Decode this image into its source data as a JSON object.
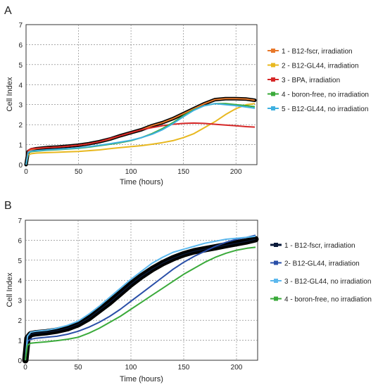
{
  "chart_data": [
    {
      "panel_label": "A",
      "type": "line",
      "xlabel": "Time (hours)",
      "ylabel": "Cell Index",
      "xlim": [
        0,
        220
      ],
      "ylim": [
        0,
        7
      ],
      "xticks": [
        "0",
        "50",
        "100",
        "150",
        "200"
      ],
      "yticks": [
        "0",
        "1",
        "2",
        "3",
        "4",
        "5",
        "6",
        "7"
      ],
      "grid": "dashed",
      "legend_position": "right",
      "series": [
        {
          "name": "1 - B12-fscr, irradiation",
          "color": "#e8782a",
          "x": [
            0,
            2,
            5,
            10,
            20,
            30,
            40,
            50,
            60,
            70,
            80,
            90,
            100,
            110,
            120,
            130,
            140,
            150,
            160,
            170,
            180,
            190,
            200,
            210,
            218
          ],
          "y": [
            0,
            0.65,
            0.75,
            0.8,
            0.85,
            0.88,
            0.92,
            0.97,
            1.05,
            1.15,
            1.28,
            1.45,
            1.6,
            1.75,
            1.95,
            2.1,
            2.3,
            2.55,
            2.8,
            3.05,
            3.25,
            3.3,
            3.3,
            3.28,
            3.22
          ]
        },
        {
          "name": "2 - B12-GL44, irradiation",
          "color": "#e8b820",
          "x": [
            0,
            2,
            5,
            10,
            20,
            30,
            40,
            50,
            60,
            70,
            80,
            90,
            100,
            110,
            120,
            130,
            140,
            150,
            160,
            170,
            180,
            190,
            200,
            210,
            218
          ],
          "y": [
            0,
            0.5,
            0.55,
            0.58,
            0.6,
            0.62,
            0.64,
            0.66,
            0.7,
            0.74,
            0.8,
            0.85,
            0.9,
            0.95,
            1.02,
            1.1,
            1.2,
            1.35,
            1.55,
            1.85,
            2.15,
            2.5,
            2.8,
            3.0,
            3.05
          ]
        },
        {
          "name": "3 - BPA, irradiation",
          "color": "#d62828",
          "x": [
            0,
            2,
            5,
            10,
            20,
            30,
            40,
            50,
            60,
            70,
            80,
            90,
            100,
            110,
            120,
            130,
            140,
            150,
            160,
            170,
            180,
            190,
            200,
            210,
            218
          ],
          "y": [
            0,
            0.72,
            0.8,
            0.82,
            0.85,
            0.88,
            0.92,
            0.97,
            1.05,
            1.15,
            1.3,
            1.45,
            1.6,
            1.75,
            1.85,
            1.95,
            2.02,
            2.06,
            2.08,
            2.06,
            2.02,
            1.98,
            1.94,
            1.9,
            1.88
          ]
        },
        {
          "name": "4 - boron-free, no irradiation",
          "color": "#3aaa3a",
          "x": [
            0,
            2,
            5,
            10,
            20,
            30,
            40,
            50,
            60,
            70,
            80,
            90,
            100,
            110,
            120,
            130,
            140,
            150,
            160,
            170,
            180,
            190,
            200,
            210,
            218
          ],
          "y": [
            0,
            0.6,
            0.65,
            0.68,
            0.72,
            0.75,
            0.78,
            0.82,
            0.88,
            0.95,
            1.02,
            1.1,
            1.2,
            1.35,
            1.55,
            1.8,
            2.1,
            2.45,
            2.75,
            2.95,
            3.05,
            3.05,
            3.0,
            2.95,
            2.9
          ]
        },
        {
          "name": "5 - B12-GL44, no irradiation",
          "color": "#3fb0e0",
          "x": [
            0,
            2,
            5,
            10,
            20,
            30,
            40,
            50,
            60,
            70,
            80,
            90,
            100,
            110,
            120,
            130,
            140,
            150,
            160,
            170,
            180,
            190,
            200,
            210,
            218
          ],
          "y": [
            0,
            0.62,
            0.68,
            0.7,
            0.74,
            0.77,
            0.8,
            0.84,
            0.9,
            0.97,
            1.05,
            1.13,
            1.22,
            1.35,
            1.52,
            1.75,
            2.05,
            2.4,
            2.72,
            2.95,
            3.05,
            3.0,
            2.95,
            2.88,
            2.82
          ]
        }
      ]
    },
    {
      "panel_label": "B",
      "type": "line",
      "xlabel": "Time (hours)",
      "ylabel": "Cell Index",
      "xlim": [
        0,
        220
      ],
      "ylim": [
        0,
        7
      ],
      "xticks": [
        "0",
        "50",
        "100",
        "150",
        "200"
      ],
      "yticks": [
        "0",
        "1",
        "2",
        "3",
        "4",
        "5",
        "6",
        "7"
      ],
      "grid": "dashed",
      "legend_position": "right",
      "series": [
        {
          "name": "1 - B12-fscr, irradiation",
          "color": "#0a1a3a",
          "x": [
            0,
            2,
            5,
            10,
            20,
            30,
            40,
            50,
            60,
            70,
            80,
            90,
            100,
            110,
            120,
            130,
            140,
            150,
            160,
            170,
            180,
            190,
            200,
            210,
            218
          ],
          "y": [
            0,
            1.1,
            1.3,
            1.35,
            1.4,
            1.48,
            1.6,
            1.8,
            2.1,
            2.5,
            2.9,
            3.35,
            3.8,
            4.2,
            4.55,
            4.85,
            5.1,
            5.3,
            5.45,
            5.55,
            5.65,
            5.75,
            5.85,
            5.95,
            6.05
          ]
        },
        {
          "name": "2- B12-GL44, irradiation",
          "color": "#2a4fa8",
          "x": [
            0,
            2,
            5,
            10,
            20,
            30,
            40,
            50,
            60,
            70,
            80,
            90,
            100,
            110,
            120,
            130,
            140,
            150,
            160,
            170,
            180,
            190,
            200,
            210,
            218
          ],
          "y": [
            0,
            0.95,
            1.05,
            1.1,
            1.15,
            1.2,
            1.3,
            1.45,
            1.65,
            1.9,
            2.2,
            2.55,
            2.95,
            3.35,
            3.75,
            4.15,
            4.55,
            4.9,
            5.2,
            5.45,
            5.7,
            5.9,
            6.05,
            6.15,
            6.25
          ]
        },
        {
          "name": "3 - B12-GL44, no irradiation",
          "color": "#5cb8ee",
          "x": [
            0,
            2,
            5,
            10,
            20,
            30,
            40,
            50,
            60,
            70,
            80,
            90,
            100,
            110,
            120,
            130,
            140,
            150,
            160,
            170,
            180,
            190,
            200,
            210,
            218
          ],
          "y": [
            0,
            1.2,
            1.4,
            1.45,
            1.5,
            1.6,
            1.75,
            1.95,
            2.3,
            2.7,
            3.15,
            3.6,
            4.05,
            4.45,
            4.85,
            5.15,
            5.4,
            5.55,
            5.7,
            5.85,
            5.95,
            6.05,
            6.1,
            6.15,
            6.2
          ]
        },
        {
          "name": "4 - boron-free, no irradiation",
          "color": "#3aaa3a",
          "x": [
            0,
            2,
            5,
            10,
            20,
            30,
            40,
            50,
            60,
            70,
            80,
            90,
            100,
            110,
            120,
            130,
            140,
            150,
            160,
            170,
            180,
            190,
            200,
            210,
            218
          ],
          "y": [
            0,
            0.75,
            0.85,
            0.88,
            0.92,
            0.98,
            1.05,
            1.15,
            1.35,
            1.6,
            1.9,
            2.2,
            2.55,
            2.9,
            3.25,
            3.6,
            3.95,
            4.3,
            4.6,
            4.9,
            5.15,
            5.35,
            5.5,
            5.6,
            5.65
          ]
        }
      ]
    }
  ]
}
